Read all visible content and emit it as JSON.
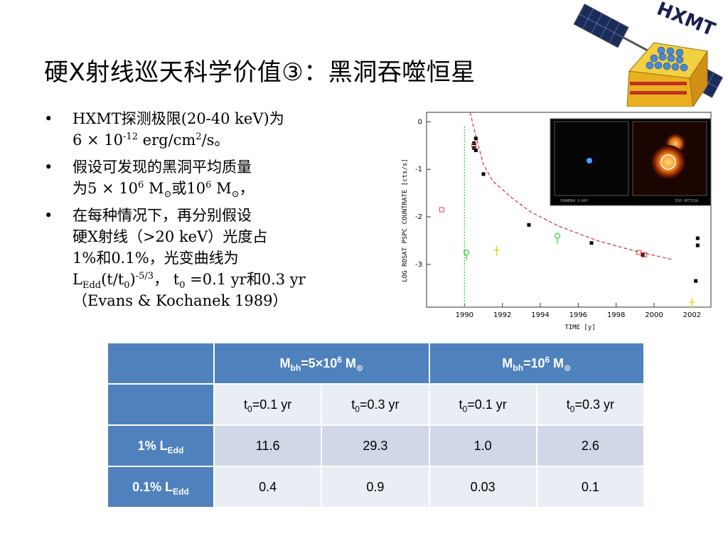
{
  "slide": {
    "title": "硬X射线巡天科学价值③：黑洞吞噬恒星"
  },
  "bullets": [
    {
      "lines": [
        "HXMT探测极限(20-40 keV)为",
        "6 × 10-12 erg/cm2/s。"
      ]
    },
    {
      "lines": [
        "假设可发现的黑洞平均质量",
        "为5 × 106 M⊙或106 M⊙，"
      ]
    },
    {
      "lines": [
        "在每种情况下，再分别假设",
        "硬X射线（>20 keV）光度占",
        "1%和0.1%，光变曲线为",
        "LEdd(t/t0)-5/3， t0 =0.1 yr和0.3 yr",
        "（Evans & Kochanek 1989）"
      ]
    }
  ],
  "logo": {
    "text": "HXMT"
  },
  "chart_data": {
    "type": "scatter",
    "ylabel": "LOG ROSAT PSPC COUNTRATE [cts/s]",
    "xlabel": "TIME [y]",
    "xlim": [
      1988,
      2003
    ],
    "ylim": [
      -3.9,
      0.2
    ],
    "x_ticks": [
      1990,
      1992,
      1994,
      1996,
      1998,
      2000,
      2002
    ],
    "y_ticks": [
      0,
      -1,
      -2,
      -3
    ],
    "x_tick_labels": [
      "1990",
      "1992",
      "1994",
      "1996",
      "1998",
      "2000",
      "2002"
    ],
    "y_tick_labels": [
      "0",
      "-1",
      "-2",
      "-3"
    ],
    "inset_labels": [
      "CHANDRA X-RAY",
      "ESO OPTICAL"
    ],
    "series": [
      {
        "name": "",
        "color": "#000000",
        "marker": "square",
        "points": [
          [
            1990.5,
            -0.45
          ],
          [
            1990.5,
            -0.55
          ],
          [
            1990.6,
            -0.35
          ],
          [
            1990.6,
            -0.6
          ],
          [
            1991.0,
            -1.1
          ],
          [
            1993.4,
            -2.17
          ],
          [
            1996.7,
            -2.55
          ],
          [
            1999.4,
            -2.8
          ],
          [
            2002.3,
            -2.45
          ],
          [
            2002.3,
            -2.6
          ],
          [
            2002.2,
            -3.35
          ]
        ]
      },
      {
        "name": "",
        "color": "#e04040",
        "marker": "open-square",
        "points": [
          [
            1988.8,
            -1.85
          ],
          [
            1990.5,
            -0.5
          ],
          [
            1999.2,
            -2.75
          ],
          [
            1999.5,
            -2.8
          ]
        ]
      },
      {
        "name": "",
        "color": "#33cc33",
        "marker": "open-circle",
        "points": [
          [
            1990.1,
            -2.75
          ],
          [
            1994.9,
            -2.4
          ]
        ]
      },
      {
        "name": "",
        "color": "#dddd22",
        "marker": "arrow",
        "points": [
          [
            1991.7,
            -2.7
          ],
          [
            2002.0,
            -3.8
          ]
        ]
      }
    ],
    "curve": {
      "color": "#cc3333",
      "style": "dashed",
      "points": [
        [
          1990.3,
          0.3
        ],
        [
          1990.6,
          -0.3
        ],
        [
          1991.0,
          -0.9
        ],
        [
          1991.5,
          -1.25
        ],
        [
          1992.5,
          -1.6
        ],
        [
          1993.5,
          -1.9
        ],
        [
          1995,
          -2.2
        ],
        [
          1997,
          -2.5
        ],
        [
          1999,
          -2.72
        ],
        [
          2001,
          -2.9
        ]
      ]
    },
    "vline": {
      "x": 1990.0,
      "color": "#33cc33",
      "style": "dotted"
    }
  },
  "table": {
    "header_group": [
      "",
      "Mbh=5×106 M⊙",
      "Mbh=106 M⊙"
    ],
    "header_cols": [
      "",
      "t0=0.1 yr",
      "t0=0.3 yr",
      "t0=0.1 yr",
      "t0=0.3 yr"
    ],
    "rows": [
      {
        "label": "1% LEdd",
        "values": [
          "11.6",
          "29.3",
          "1.0",
          "2.6"
        ]
      },
      {
        "label": "0.1% LEdd",
        "values": [
          "0.4",
          "0.9",
          "0.03",
          "0.1"
        ]
      }
    ]
  }
}
